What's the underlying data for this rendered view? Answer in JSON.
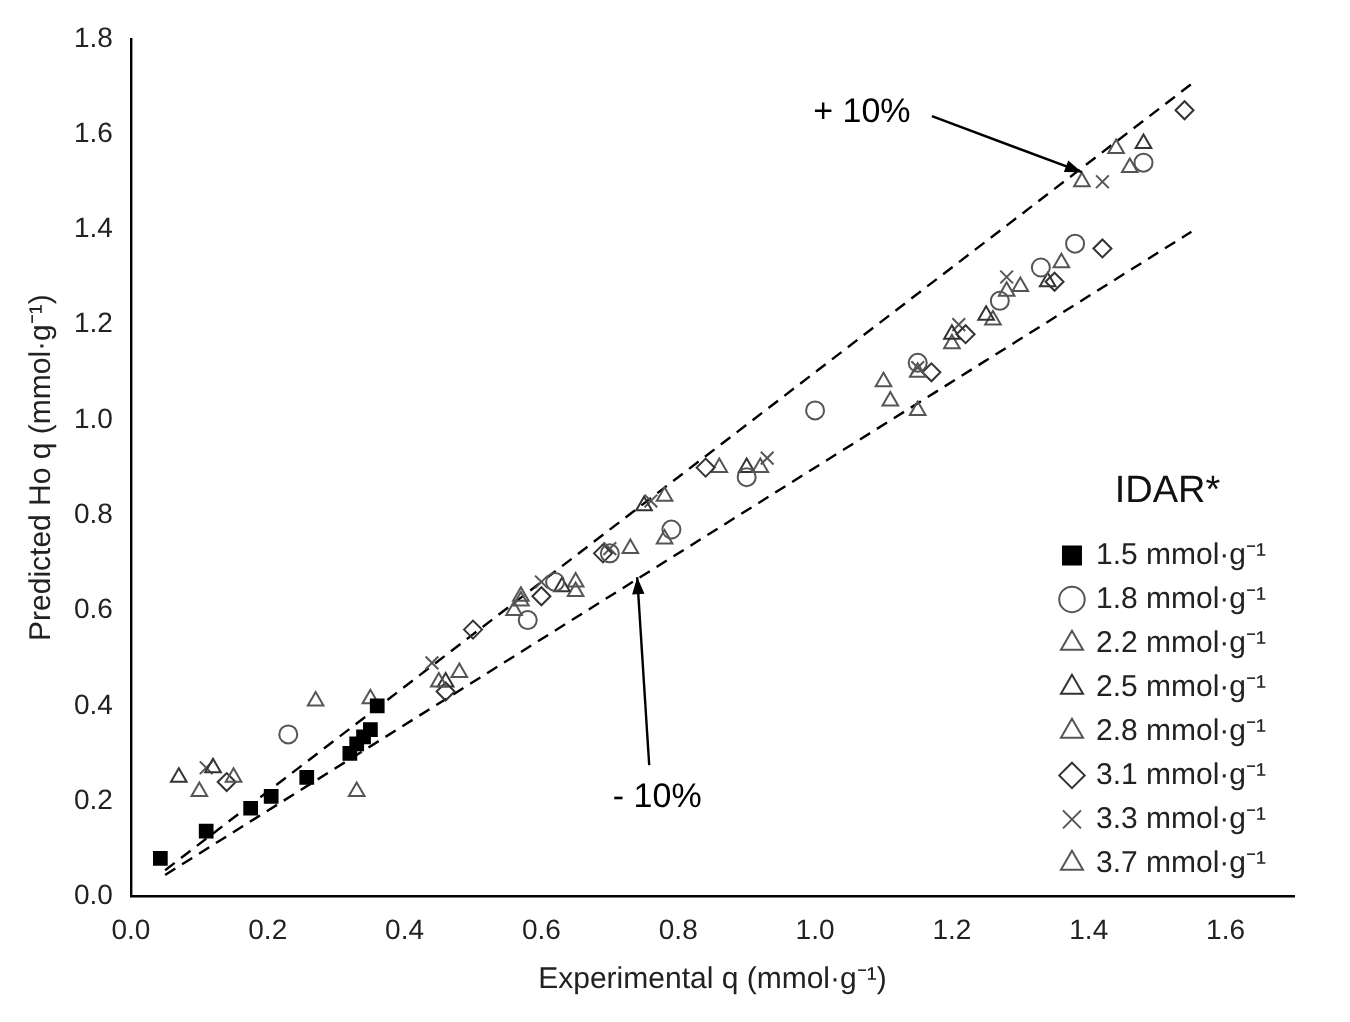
{
  "chart_data": {
    "type": "scatter",
    "xlabel": "Experimental q (mmol·g⁻¹)",
    "ylabel": "Predicted Ho q (mmol·g⁻¹)",
    "legend_title": "IDAR*",
    "legend": "bottom right",
    "grid": false,
    "xlim": [
      0,
      1.7
    ],
    "ylim": [
      0,
      1.8
    ],
    "xticks": [
      {
        "value": 0,
        "label": "0.0"
      },
      0.2,
      0.4,
      0.6,
      0.8,
      {
        "value": 1,
        "label": "1.0"
      },
      1.2,
      1.4,
      1.6
    ],
    "yticks": [
      {
        "value": 0,
        "label": "0.0"
      },
      0.2,
      0.4,
      0.6,
      0.8,
      {
        "value": 1,
        "label": "1.0"
      },
      1.2,
      1.4,
      1.6,
      1.8
    ],
    "annotations": [
      {
        "text": "+ 10%",
        "x": 1.39,
        "y": 1.52
      },
      {
        "text": "- 10%",
        "x": 0.74,
        "y": 0.67
      }
    ],
    "series": [
      {
        "name": "1.5 mmol·g⁻¹",
        "color": "#000000",
        "marker": "square",
        "x": [
          0.043,
          0.11,
          0.175,
          0.205,
          0.257,
          0.32,
          0.33,
          0.34,
          0.35,
          0.36
        ],
        "values": [
          0.08,
          0.137,
          0.185,
          0.21,
          0.25,
          0.3,
          0.32,
          0.335,
          0.35,
          0.4
        ]
      },
      {
        "name": "1.8 mmol·g⁻¹",
        "color": "#555555",
        "marker": "circle",
        "x": [
          0.23,
          0.58,
          0.62,
          0.7,
          0.79,
          0.9,
          1.0,
          1.15,
          1.27,
          1.33,
          1.38,
          1.48
        ],
        "values": [
          0.34,
          0.58,
          0.66,
          0.72,
          0.77,
          0.88,
          1.02,
          1.12,
          1.25,
          1.32,
          1.37,
          1.54
        ]
      },
      {
        "name": "2.2 mmol·g⁻¹",
        "color": "#555555",
        "marker": "triangle",
        "x": [
          0.1,
          0.35,
          0.45,
          0.57,
          0.78,
          0.92,
          1.11,
          1.15,
          1.28,
          1.36,
          1.44
        ],
        "values": [
          0.22,
          0.415,
          0.45,
          0.62,
          0.84,
          0.9,
          1.04,
          1.1,
          1.27,
          1.33,
          1.57
        ]
      },
      {
        "name": "2.5 mmol·g⁻¹",
        "color": "#333333",
        "marker": "triangle",
        "x": [
          0.07,
          0.12,
          0.46,
          0.63,
          0.75,
          0.9,
          1.2,
          1.25,
          1.34,
          1.48
        ],
        "values": [
          0.25,
          0.27,
          0.45,
          0.65,
          0.82,
          0.9,
          1.18,
          1.22,
          1.29,
          1.58
        ]
      },
      {
        "name": "2.8 mmol·g⁻¹",
        "color": "#555555",
        "marker": "triangle",
        "x": [
          0.15,
          0.48,
          0.56,
          0.65,
          0.73,
          0.78,
          1.1,
          1.2,
          1.3,
          1.46
        ],
        "values": [
          0.25,
          0.47,
          0.6,
          0.64,
          0.73,
          0.75,
          1.08,
          1.16,
          1.28,
          1.53
        ]
      },
      {
        "name": "3.1 mmol·g⁻¹",
        "color": "#333333",
        "marker": "diamond",
        "x": [
          0.14,
          0.46,
          0.5,
          0.6,
          0.69,
          0.84,
          1.17,
          1.22,
          1.35,
          1.42,
          1.54
        ],
        "values": [
          0.24,
          0.43,
          0.56,
          0.63,
          0.72,
          0.9,
          1.1,
          1.18,
          1.29,
          1.36,
          1.65
        ]
      },
      {
        "name": "3.3 mmol·g⁻¹",
        "color": "#555555",
        "marker": "cross",
        "x": [
          0.11,
          0.44,
          0.6,
          0.7,
          0.76,
          0.93,
          1.15,
          1.21,
          1.28,
          1.42
        ],
        "values": [
          0.27,
          0.49,
          0.66,
          0.73,
          0.83,
          0.92,
          1.11,
          1.2,
          1.3,
          1.5
        ]
      },
      {
        "name": "3.7 mmol·g⁻¹",
        "color": "#555555",
        "marker": "triangle",
        "x": [
          0.27,
          0.33,
          0.57,
          0.65,
          0.86,
          1.15,
          1.26,
          1.39
        ],
        "values": [
          0.41,
          0.22,
          0.63,
          0.66,
          0.9,
          1.02,
          1.21,
          1.5
        ]
      },
      {
        "type": "line",
        "color": "#000000",
        "line_style": "dashed",
        "marker": "none",
        "x": [
          0.05,
          1.55
        ],
        "values": [
          0.055,
          1.705
        ]
      },
      {
        "type": "line",
        "color": "#000000",
        "line_style": "dashed",
        "marker": "none",
        "x": [
          0.05,
          1.55
        ],
        "values": [
          0.045,
          1.395
        ]
      }
    ]
  }
}
